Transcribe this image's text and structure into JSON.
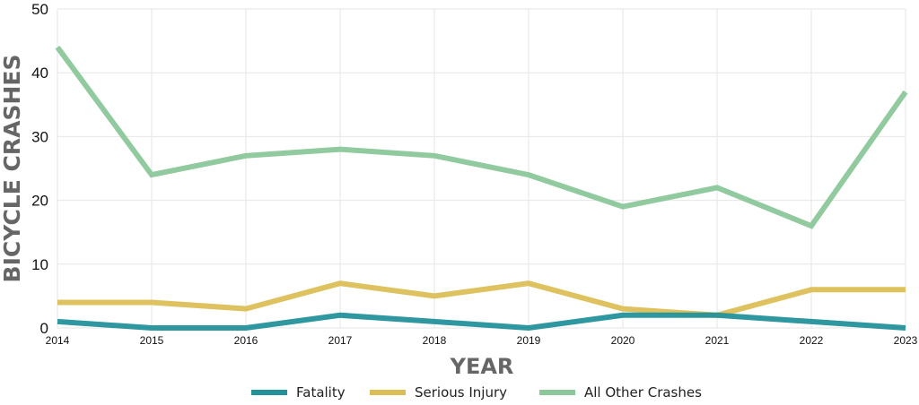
{
  "chart_data": {
    "type": "line",
    "title": "",
    "xlabel": "YEAR",
    "ylabel": "BICYCLE CRASHES",
    "x": [
      "2014",
      "2015",
      "2016",
      "2017",
      "2018",
      "2019",
      "2020",
      "2021",
      "2022",
      "2023"
    ],
    "ylim": [
      0,
      50
    ],
    "yticks": [
      "0",
      "10",
      "20",
      "30",
      "40",
      "50"
    ],
    "grid": true,
    "legend_position": "bottom",
    "series": [
      {
        "name": "Fatality",
        "color": "#23919a",
        "values": [
          1,
          0,
          0,
          2,
          1,
          0,
          2,
          2,
          1,
          0
        ]
      },
      {
        "name": "Serious Injury",
        "color": "#dbbf56",
        "values": [
          4,
          4,
          3,
          7,
          5,
          7,
          3,
          2,
          6,
          6
        ]
      },
      {
        "name": "All Other Crashes",
        "color": "#8cc79b",
        "values": [
          44,
          24,
          27,
          28,
          27,
          24,
          19,
          22,
          16,
          37
        ]
      }
    ]
  }
}
